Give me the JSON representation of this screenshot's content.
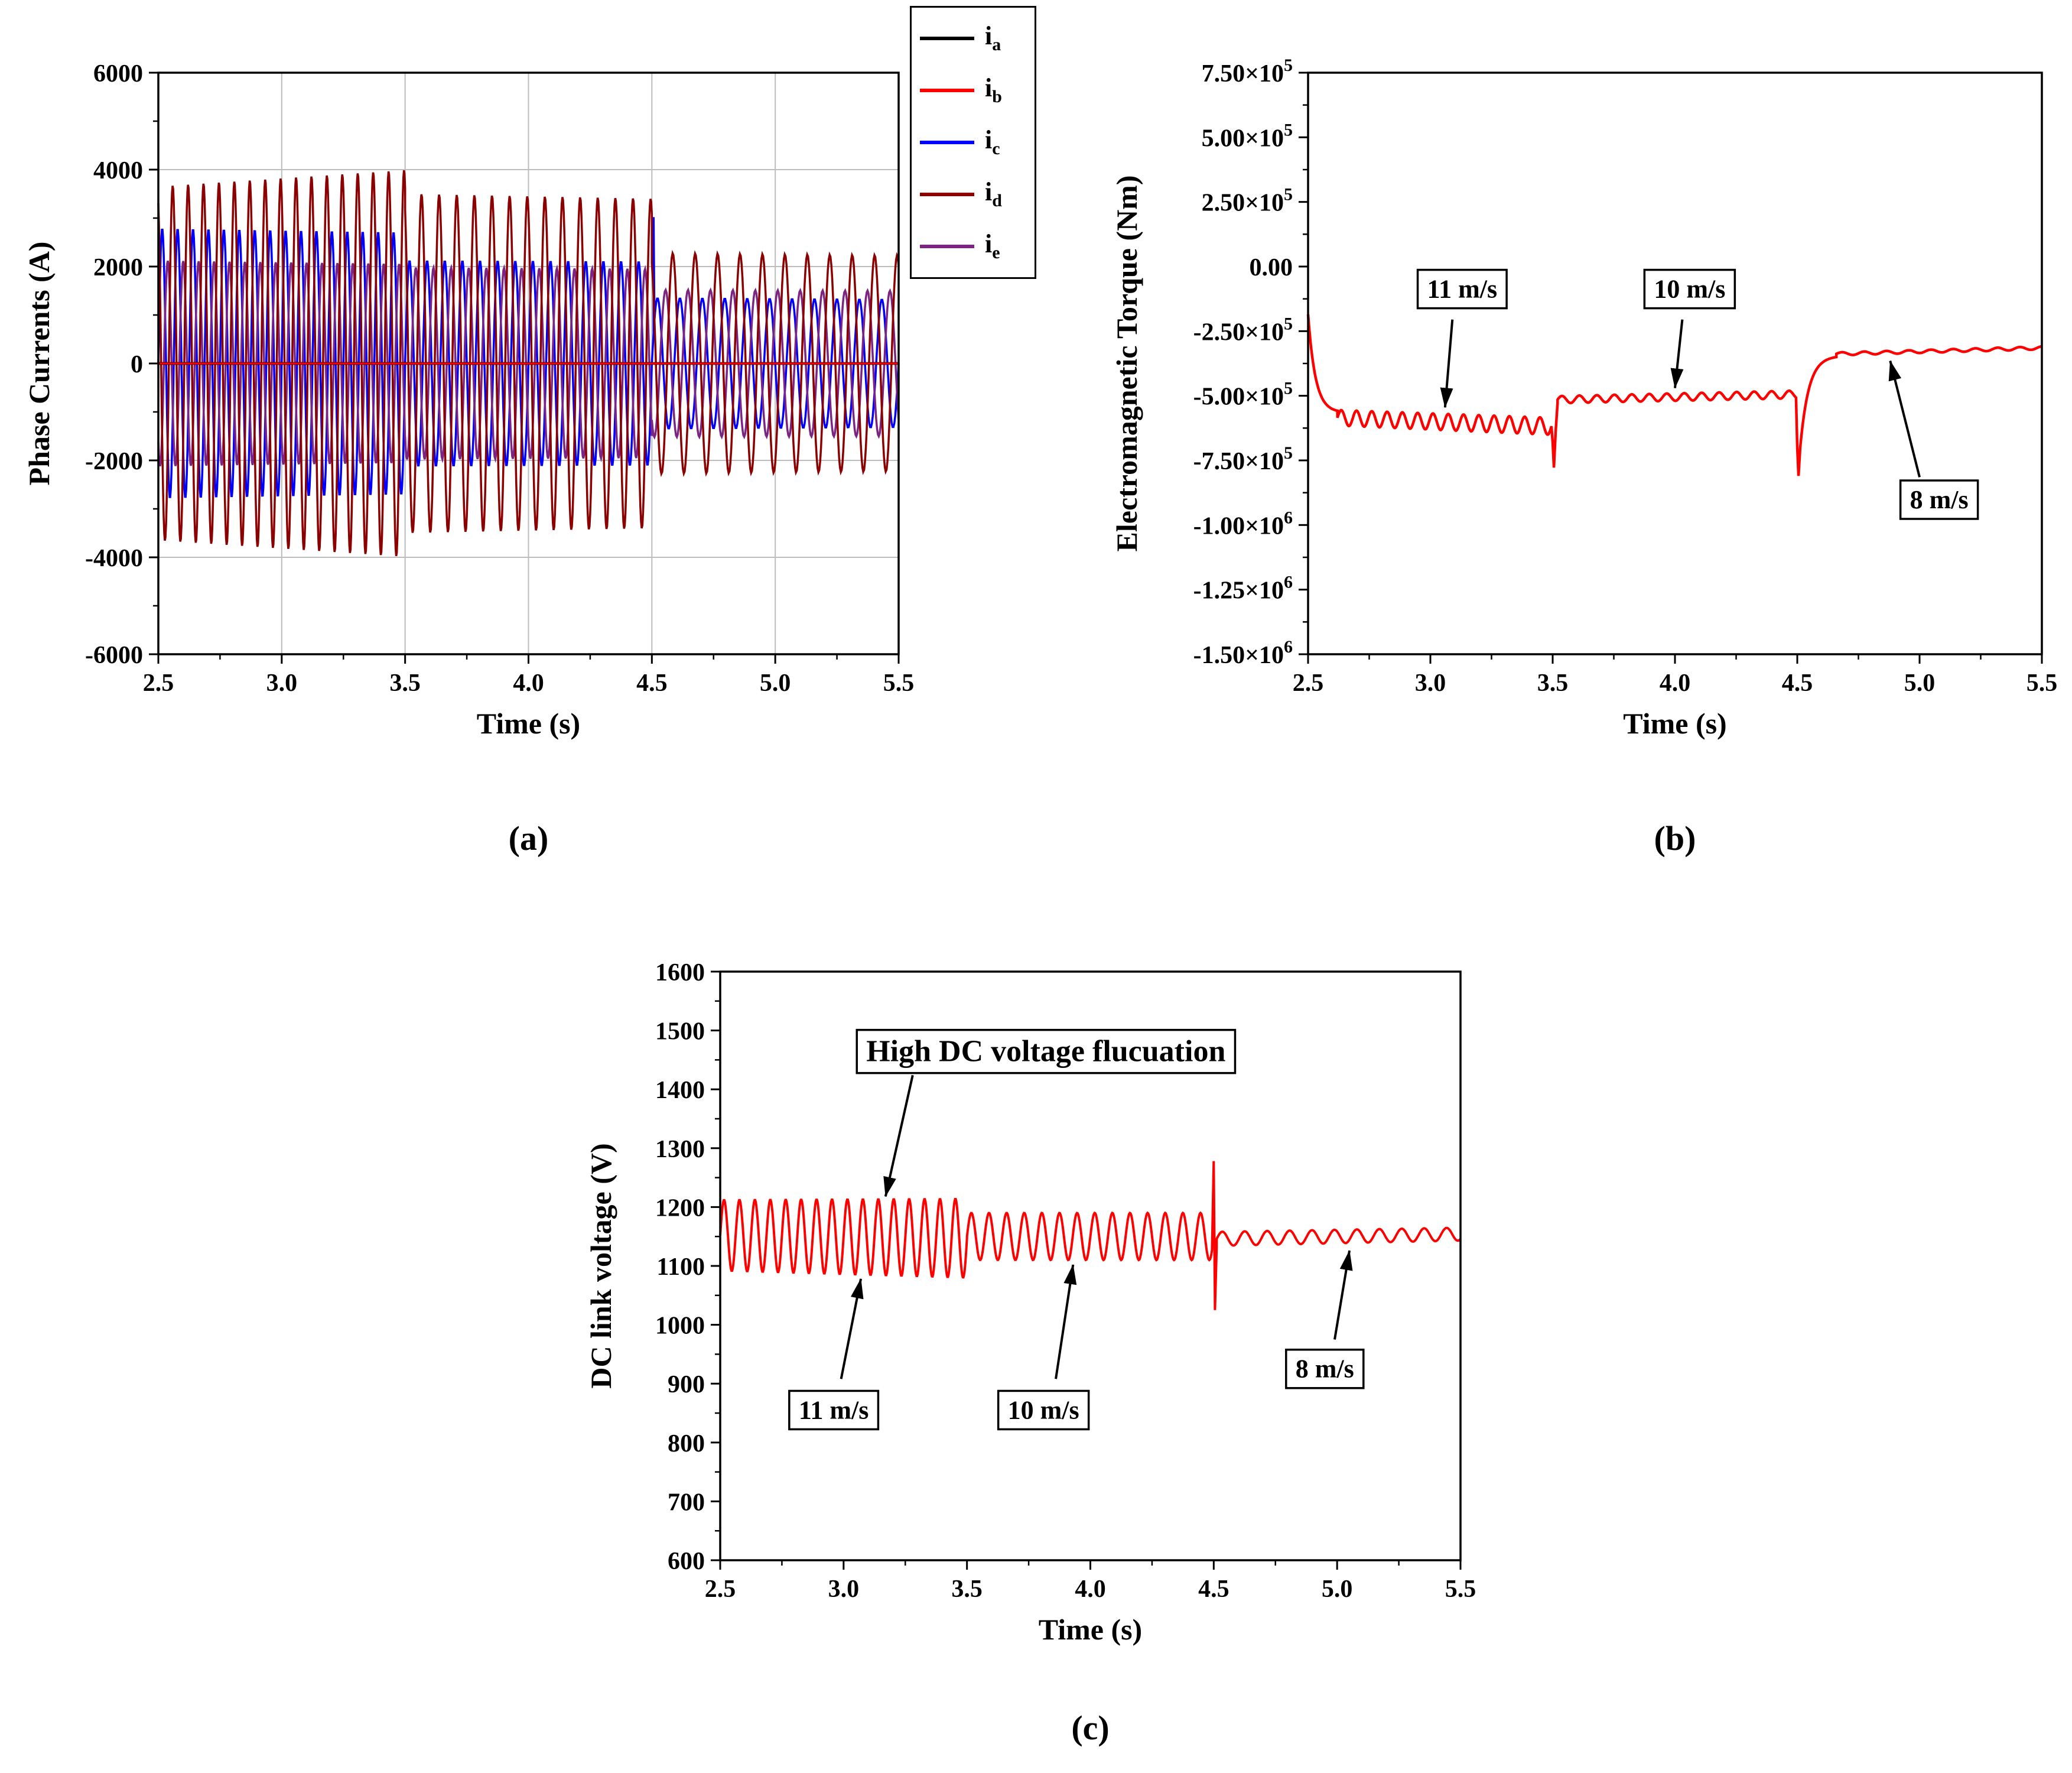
{
  "panels": {
    "a": "(a)",
    "b": "(b)",
    "c": "(c)"
  },
  "chart_data": [
    {
      "id": "phase-currents",
      "type": "line",
      "title": "",
      "xlabel": "Time (s)",
      "ylabel": "Phase Currents (A)",
      "xlim": [
        2.5,
        5.5
      ],
      "ylim": [
        -6000,
        6000
      ],
      "xticks": [
        2.5,
        3.0,
        3.5,
        4.0,
        4.5,
        5.0,
        5.5
      ],
      "xtick_labels": [
        "2.5",
        "3.0",
        "3.5",
        "4.0",
        "4.5",
        "5.0",
        "5.5"
      ],
      "yticks": [
        6000,
        4000,
        2000,
        0,
        -2000,
        -4000,
        -6000
      ],
      "ytick_labels": [
        "6000",
        "4000",
        "2000",
        "0",
        "-2000",
        "-4000",
        "-6000"
      ],
      "grid": true,
      "legend": {
        "position": "outside-top-right",
        "items": [
          {
            "base": "i",
            "sub": "a",
            "color": "#000000"
          },
          {
            "base": "i",
            "sub": "b",
            "color": "#ff0000"
          },
          {
            "base": "i",
            "sub": "c",
            "color": "#0000ff"
          },
          {
            "base": "i",
            "sub": "d",
            "color": "#8b0000"
          },
          {
            "base": "i",
            "sub": "e",
            "color": "#7b2482"
          }
        ]
      },
      "series": [
        {
          "name": "ic",
          "color": "#0000ff",
          "width": 3.5,
          "type": "sine",
          "phase_deg": 0,
          "segments": [
            {
              "t0": 2.5,
              "t1": 3.5,
              "freq_hz": 16,
              "amp0": 2780,
              "amp1": 2700
            },
            {
              "t0": 3.5,
              "t1": 4.5,
              "freq_hz": 14,
              "amp0": 2120,
              "amp1": 2100
            },
            {
              "t0": 4.5,
              "t1": 5.5,
              "freq_hz": 11,
              "amp0": 1350,
              "amp1": 1320
            }
          ],
          "spike": {
            "t": 4.507,
            "y": 3020
          }
        },
        {
          "name": "ie",
          "color": "#7b2482",
          "width": 3.5,
          "type": "sine",
          "phase_deg": 230,
          "segments": [
            {
              "t0": 2.5,
              "t1": 3.5,
              "freq_hz": 16,
              "amp0": 2120,
              "amp1": 2050
            },
            {
              "t0": 3.5,
              "t1": 4.5,
              "freq_hz": 14,
              "amp0": 1980,
              "amp1": 1950
            },
            {
              "t0": 4.5,
              "t1": 5.5,
              "freq_hz": 11,
              "amp0": 1520,
              "amp1": 1500
            }
          ]
        },
        {
          "name": "id",
          "color": "#8b0000",
          "width": 3.5,
          "type": "sine",
          "phase_deg": 115,
          "segments": [
            {
              "t0": 2.5,
              "t1": 3.5,
              "freq_hz": 16,
              "amp0": 3650,
              "amp1": 3990
            },
            {
              "t0": 3.5,
              "t1": 4.5,
              "freq_hz": 14,
              "amp0": 3500,
              "amp1": 3400
            },
            {
              "t0": 4.5,
              "t1": 5.5,
              "freq_hz": 11,
              "amp0": 2280,
              "amp1": 2230
            }
          ]
        },
        {
          "name": "ia",
          "color": "#000000",
          "width": 4.5,
          "type": "const",
          "value": 0
        },
        {
          "name": "ib",
          "color": "#ff0000",
          "width": 3.2,
          "type": "const",
          "value": 0
        }
      ],
      "annotations": []
    },
    {
      "id": "torque",
      "type": "line",
      "title": "",
      "xlabel": "Time (s)",
      "ylabel": "Electromagnetic Torque (Nm)",
      "xlim": [
        2.5,
        5.5
      ],
      "ylim": [
        -1500000,
        750000
      ],
      "xticks": [
        2.5,
        3.0,
        3.5,
        4.0,
        4.5,
        5.0,
        5.5
      ],
      "xtick_labels": [
        "2.5",
        "3.0",
        "3.5",
        "4.0",
        "4.5",
        "5.0",
        "5.5"
      ],
      "yticks": [
        750000,
        500000,
        250000,
        0,
        -250000,
        -500000,
        -750000,
        -1000000,
        -1250000,
        -1500000
      ],
      "ytick_labels": [
        "7.50×10^5",
        "5.00×10^5",
        "2.50×10^5",
        "0.00",
        "-2.50×10^5",
        "-5.00×10^5",
        "-7.50×10^5",
        "-1.00×10^6",
        "-1.25×10^6",
        "-1.50×10^6"
      ],
      "grid": false,
      "series": [
        {
          "name": "Te",
          "color": "#ff0000",
          "width": 4.5,
          "type": "piecewise",
          "segments": [
            {
              "kind": "points",
              "pts": [
                [
                  2.5,
                  -185000
                ]
              ]
            },
            {
              "kind": "decay",
              "t0": 2.5,
              "t1": 2.62,
              "y0": -185000,
              "y1": -565000,
              "tau": 0.03
            },
            {
              "kind": "ripple",
              "t0": 2.62,
              "t1": 3.495,
              "y0": -585000,
              "y1": -618000,
              "amp0": 30000,
              "amp1": 33000,
              "freq_hz": 16
            },
            {
              "kind": "points",
              "pts": [
                [
                  3.5,
                  -680000
                ],
                [
                  3.505,
                  -778000
                ],
                [
                  3.512,
                  -640000
                ],
                [
                  3.52,
                  -528000
                ]
              ]
            },
            {
              "kind": "ripple",
              "t0": 3.52,
              "t1": 4.495,
              "y0": -515000,
              "y1": -495000,
              "amp0": 14000,
              "amp1": 15000,
              "freq_hz": 14
            },
            {
              "kind": "points",
              "pts": [
                [
                  4.5,
                  -700000
                ],
                [
                  4.505,
                  -810000
                ],
                [
                  4.512,
                  -700000
                ]
              ]
            },
            {
              "kind": "decay",
              "t0": 4.512,
              "t1": 4.66,
              "y0": -700000,
              "y1": -345000,
              "tau": 0.035
            },
            {
              "kind": "ripple",
              "t0": 4.66,
              "t1": 5.5,
              "y0": -338000,
              "y1": -315000,
              "amp0": 6000,
              "amp1": 6000,
              "freq_hz": 11
            }
          ]
        }
      ],
      "annotations": [
        {
          "text": "11 m/s",
          "cx": 3.13,
          "cy": -85000,
          "arrow": {
            "x1": 3.09,
            "y1": -205000,
            "x2": 3.06,
            "y2": -545000
          }
        },
        {
          "text": "10 m/s",
          "cx": 4.06,
          "cy": -85000,
          "arrow": {
            "x1": 4.03,
            "y1": -205000,
            "x2": 4.0,
            "y2": -470000
          }
        },
        {
          "text": "8 m/s",
          "cx": 5.08,
          "cy": -900000,
          "arrow": {
            "x1": 5.0,
            "y1": -815000,
            "x2": 4.88,
            "y2": -365000
          }
        }
      ]
    },
    {
      "id": "dc-link-voltage",
      "type": "line",
      "title": "",
      "xlabel": "Time (s)",
      "ylabel": "DC link voltage (V)",
      "xlim": [
        2.5,
        5.5
      ],
      "ylim": [
        600,
        1600
      ],
      "xticks": [
        2.5,
        3.0,
        3.5,
        4.0,
        4.5,
        5.0,
        5.5
      ],
      "xtick_labels": [
        "2.5",
        "3.0",
        "3.5",
        "4.0",
        "4.5",
        "5.0",
        "5.5"
      ],
      "yticks": [
        1600,
        1500,
        1400,
        1300,
        1200,
        1100,
        1000,
        900,
        800,
        700,
        600
      ],
      "ytick_labels": [
        "1600",
        "1500",
        "1400",
        "1300",
        "1200",
        "1100",
        "1000",
        "900",
        "800",
        "700",
        "600"
      ],
      "grid": false,
      "series": [
        {
          "name": "Vdc",
          "color": "#ff0000",
          "width": 4,
          "type": "piecewise",
          "segments": [
            {
              "kind": "ripple",
              "t0": 2.5,
              "t1": 3.5,
              "y0": 1152,
              "y1": 1147,
              "amp0": 60,
              "amp1": 67,
              "freq_hz": 16
            },
            {
              "kind": "ripple",
              "t0": 3.5,
              "t1": 4.493,
              "y0": 1150,
              "y1": 1150,
              "amp0": 40,
              "amp1": 40,
              "freq_hz": 14
            },
            {
              "kind": "points",
              "pts": [
                [
                  4.5,
                  1278
                ],
                [
                  4.505,
                  1025
                ],
                [
                  4.512,
                  1132
                ]
              ]
            },
            {
              "kind": "ripple",
              "t0": 4.512,
              "t1": 5.5,
              "y0": 1146,
              "y1": 1154,
              "amp0": 12,
              "amp1": 11,
              "freq_hz": 11
            }
          ]
        }
      ],
      "annotations": [
        {
          "text": "High DC voltage flucuation",
          "cx": 3.82,
          "cy": 1466,
          "arrow": {
            "x1": 3.28,
            "y1": 1424,
            "x2": 3.17,
            "y2": 1218
          }
        },
        {
          "text": "11 m/s",
          "cx": 2.96,
          "cy": 856,
          "arrow": {
            "x1": 2.99,
            "y1": 908,
            "x2": 3.07,
            "y2": 1078
          }
        },
        {
          "text": "10 m/s",
          "cx": 3.81,
          "cy": 856,
          "arrow": {
            "x1": 3.86,
            "y1": 908,
            "x2": 3.93,
            "y2": 1102
          }
        },
        {
          "text": "8 m/s",
          "cx": 4.95,
          "cy": 926,
          "arrow": {
            "x1": 4.99,
            "y1": 975,
            "x2": 5.05,
            "y2": 1126
          }
        }
      ]
    }
  ]
}
